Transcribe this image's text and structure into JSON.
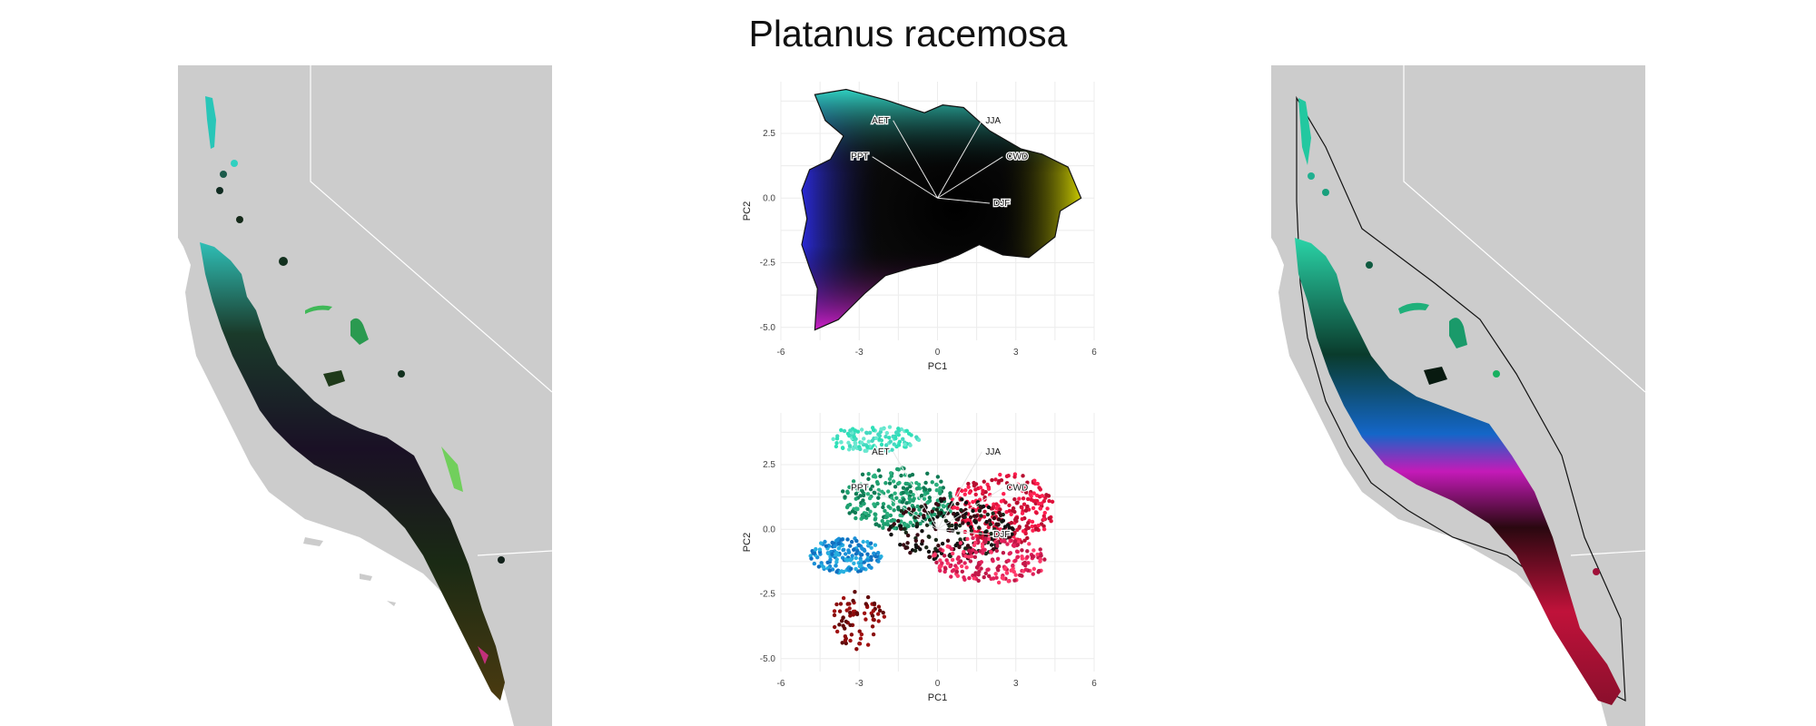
{
  "figure": {
    "title": "Platanus racemosa"
  },
  "colors": {
    "land": "#cccccc",
    "border": "#ffffff",
    "ocean": "#ffffff",
    "grid": "#ececec"
  },
  "chart_data": [
    {
      "type": "map",
      "panel": "left",
      "description_keys": [
        "land",
        "occurrence-raster"
      ]
    },
    {
      "type": "scatter",
      "panel": "pca-top",
      "xlabel": "PC1",
      "ylabel": "PC2",
      "xlim": [
        -6,
        6
      ],
      "ylim": [
        -5.5,
        4.5
      ],
      "xticks": [
        -6,
        -3,
        0,
        3,
        6
      ],
      "yticks": [
        -5.0,
        -2.5,
        0.0,
        2.5
      ],
      "xtick_labels": [
        "-6",
        "-3",
        "0",
        "3",
        "6"
      ],
      "ytick_labels": [
        "-5.0",
        "-2.5",
        "0.0",
        "2.5"
      ],
      "grid": true,
      "vectors": [
        {
          "name": "AET",
          "x": -1.7,
          "y": 3.0
        },
        {
          "name": "PPT",
          "x": -2.5,
          "y": 1.6
        },
        {
          "name": "JJA",
          "x": 1.7,
          "y": 3.0
        },
        {
          "name": "CWD",
          "x": 2.5,
          "y": 1.6
        },
        {
          "name": "DJF",
          "x": 2.0,
          "y": -0.2
        }
      ],
      "hull": [
        [
          -4.7,
          4.0
        ],
        [
          -3.5,
          4.2
        ],
        [
          -2.0,
          3.8
        ],
        [
          -0.5,
          3.3
        ],
        [
          0.2,
          3.6
        ],
        [
          1.0,
          3.5
        ],
        [
          2.0,
          2.6
        ],
        [
          3.2,
          1.9
        ],
        [
          4.0,
          1.7
        ],
        [
          5.0,
          1.2
        ],
        [
          5.5,
          0.0
        ],
        [
          4.7,
          -0.5
        ],
        [
          4.5,
          -1.5
        ],
        [
          3.5,
          -2.3
        ],
        [
          2.5,
          -2.2
        ],
        [
          1.6,
          -1.8
        ],
        [
          0.8,
          -2.2
        ],
        [
          0.0,
          -2.5
        ],
        [
          -1.0,
          -2.7
        ],
        [
          -2.0,
          -3.0
        ],
        [
          -2.8,
          -3.7
        ],
        [
          -3.8,
          -4.7
        ],
        [
          -4.7,
          -5.1
        ],
        [
          -4.6,
          -3.5
        ],
        [
          -4.9,
          -2.7
        ],
        [
          -5.2,
          -1.8
        ],
        [
          -5.0,
          -0.8
        ],
        [
          -5.2,
          0.3
        ],
        [
          -4.9,
          1.1
        ],
        [
          -4.1,
          1.5
        ],
        [
          -3.6,
          2.4
        ],
        [
          -4.3,
          3.0
        ],
        [
          -4.7,
          4.0
        ]
      ]
    },
    {
      "type": "scatter",
      "panel": "pca-bottom",
      "xlabel": "PC1",
      "ylabel": "PC2",
      "xlim": [
        -6,
        6
      ],
      "ylim": [
        -5.5,
        4.5
      ],
      "xticks": [
        -6,
        -3,
        0,
        3,
        6
      ],
      "yticks": [
        -5.0,
        -2.5,
        0.0,
        2.5
      ],
      "xtick_labels": [
        "-6",
        "-3",
        "0",
        "3",
        "6"
      ],
      "ytick_labels": [
        "-5.0",
        "-2.5",
        "0.0",
        "2.5"
      ],
      "grid": true,
      "vectors": [
        {
          "name": "AET",
          "x": -1.7,
          "y": 3.0
        },
        {
          "name": "PPT",
          "x": -2.5,
          "y": 1.6
        },
        {
          "name": "JJA",
          "x": 1.7,
          "y": 3.0
        },
        {
          "name": "CWD",
          "x": 2.5,
          "y": 1.6
        },
        {
          "name": "DJF",
          "x": 2.0,
          "y": -0.2
        }
      ]
    },
    {
      "type": "map",
      "panel": "right",
      "description_keys": [
        "land",
        "range-hull",
        "classified-raster"
      ]
    }
  ]
}
